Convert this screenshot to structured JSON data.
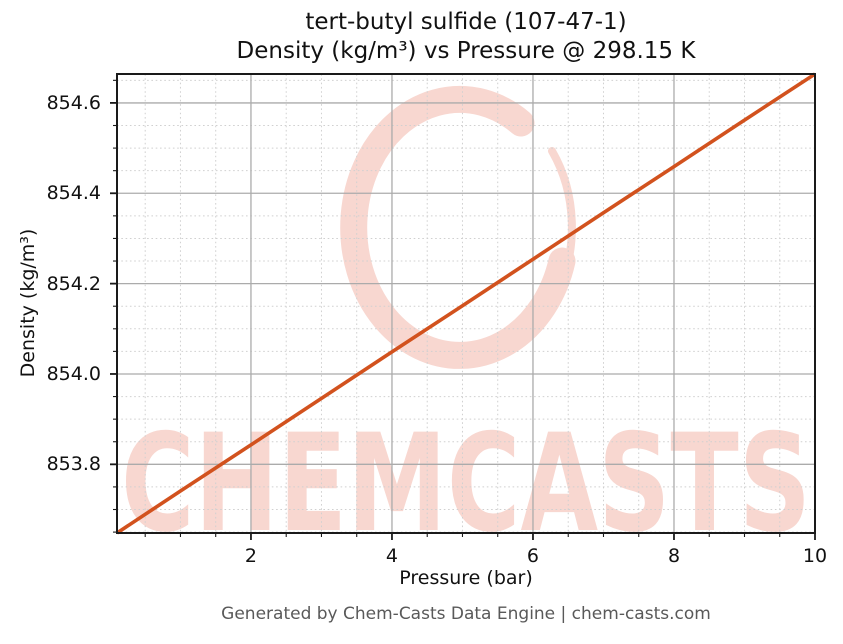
{
  "title": {
    "line1": "tert-butyl sulfide (107-47-1)",
    "line2": "Density (kg/m³) vs Pressure @ 298.15 K"
  },
  "footer": {
    "text": "Generated by Chem-Casts Data Engine | chem-casts.com"
  },
  "watermark": {
    "text": "CHEMCASTS",
    "logo": "brush-ring-logo",
    "color": "#f8d7d0"
  },
  "colors": {
    "line": "#d2521e",
    "grid_major": "#ababab",
    "grid_minor": "#d0d0d0",
    "spine": "#1a1a1a",
    "tick": "#1a1a1a",
    "title_text": "#111111",
    "footer_text": "#595959",
    "watermark": "#f8d7d0"
  },
  "chart_data": {
    "type": "line",
    "title": "tert-butyl sulfide (107-47-1) — Density (kg/m³) vs Pressure @ 298.15 K",
    "xlabel": "Pressure (bar)",
    "ylabel": "Density (kg/m³)",
    "xlim": [
      0.1,
      10
    ],
    "ylim": [
      853.648,
      854.664
    ],
    "xticks": [
      2,
      4,
      6,
      8,
      10
    ],
    "xtick_labels": [
      "2",
      "4",
      "6",
      "8",
      "10"
    ],
    "yticks": [
      853.8,
      854.0,
      854.2,
      854.4,
      854.6
    ],
    "ytick_labels": [
      "853.8",
      "854.0",
      "854.2",
      "854.4",
      "854.6"
    ],
    "minor_x_step": 0.5,
    "minor_y_step": 0.05,
    "grid": true,
    "legend": false,
    "series": [
      {
        "name": "density-vs-pressure",
        "color": "#d2521e",
        "x": [
          0.1,
          1,
          2,
          3,
          4,
          5,
          6,
          7,
          8,
          9,
          10
        ],
        "y": [
          853.648,
          853.741,
          853.843,
          853.946,
          854.049,
          854.151,
          854.254,
          854.357,
          854.459,
          854.562,
          854.664
        ]
      }
    ]
  }
}
